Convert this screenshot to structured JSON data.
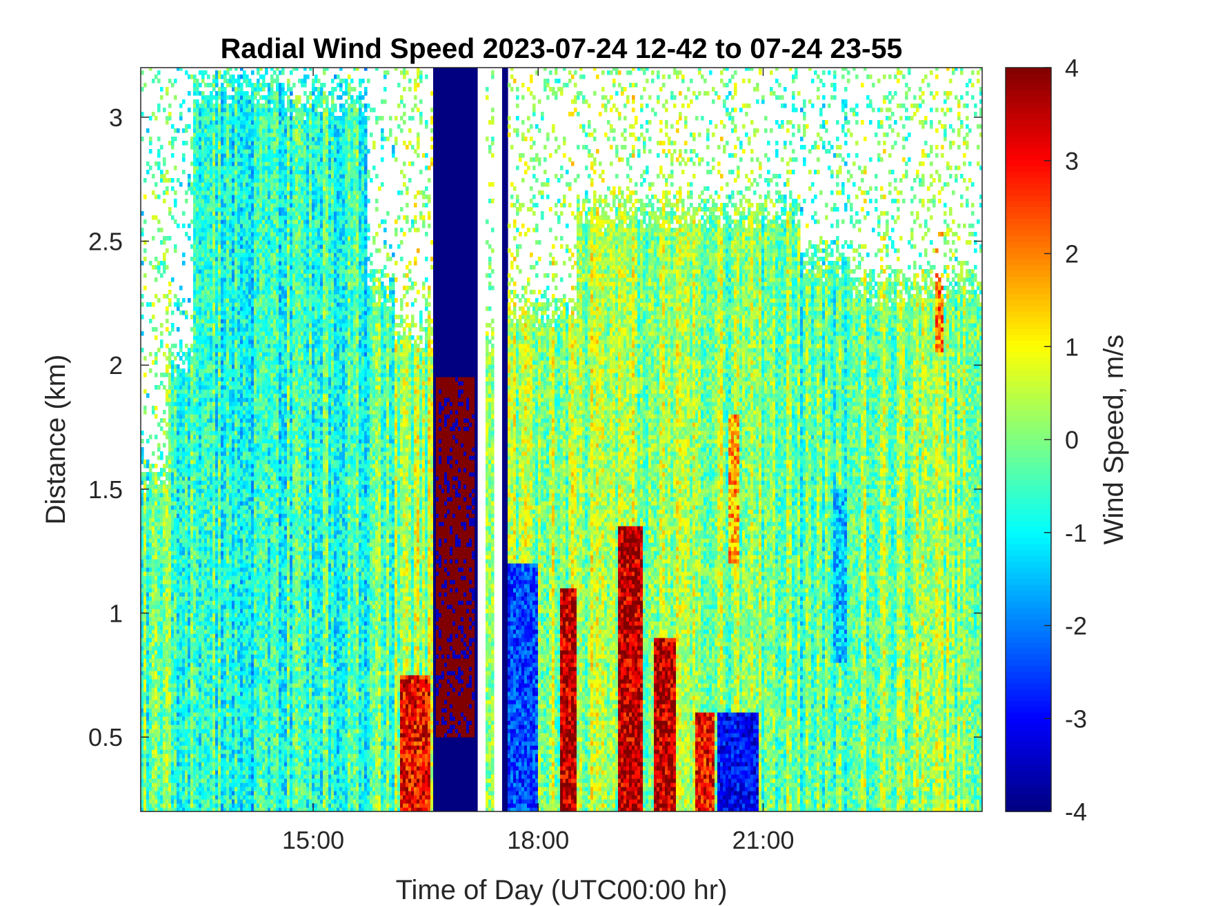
{
  "chart_data": {
    "type": "heatmap",
    "title": "Radial Wind Speed 2023-07-24 12-42 to 07-24 23-55",
    "xlabel": "Time of Day (UTC00:00 hr)",
    "ylabel": "Distance (km)",
    "colorbar_label": "Wind Speed, m/s",
    "colormap": "jet",
    "xlim": [
      12.7,
      23.92
    ],
    "ylim": [
      0.2,
      3.2
    ],
    "clim": [
      -4,
      4
    ],
    "x_ticks": [
      {
        "value": 15,
        "label": "15:00"
      },
      {
        "value": 18,
        "label": "18:00"
      },
      {
        "value": 21,
        "label": "21:00"
      }
    ],
    "y_ticks": [
      {
        "value": 0.5,
        "label": "0.5"
      },
      {
        "value": 1,
        "label": "1"
      },
      {
        "value": 1.5,
        "label": "1.5"
      },
      {
        "value": 2,
        "label": "2"
      },
      {
        "value": 2.5,
        "label": "2.5"
      },
      {
        "value": 3,
        "label": "3"
      }
    ],
    "colorbar_ticks": [
      {
        "value": 4,
        "label": "4"
      },
      {
        "value": 3,
        "label": "3"
      },
      {
        "value": 2,
        "label": "2"
      },
      {
        "value": 1,
        "label": "1"
      },
      {
        "value": 0,
        "label": "0"
      },
      {
        "value": -1,
        "label": "-1"
      },
      {
        "value": -2,
        "label": "-2"
      },
      {
        "value": -3,
        "label": "-3"
      },
      {
        "value": -4,
        "label": "-4"
      }
    ],
    "segments": [
      {
        "x_start": 12.7,
        "x_end": 13.05,
        "top_km": 1.65,
        "mean": -0.3
      },
      {
        "x_start": 13.05,
        "x_end": 13.4,
        "top_km": 2.1,
        "mean": -0.4
      },
      {
        "x_start": 13.4,
        "x_end": 14.6,
        "top_km": 3.2,
        "mean": -0.7
      },
      {
        "x_start": 14.6,
        "x_end": 15.7,
        "top_km": 3.15,
        "mean": -0.6
      },
      {
        "x_start": 15.7,
        "x_end": 16.1,
        "top_km": 2.4,
        "mean": -0.3
      },
      {
        "x_start": 16.1,
        "x_end": 16.6,
        "top_km": 2.2,
        "mean": 0.2
      },
      {
        "x_start": 16.6,
        "x_end": 17.2,
        "top_km": 3.2,
        "mean": -4.0
      },
      {
        "x_start": 17.3,
        "x_end": 17.42,
        "top_km": 2.2,
        "mean": 0.0
      },
      {
        "x_start": 17.52,
        "x_end": 17.6,
        "top_km": 3.2,
        "mean": -4.0
      },
      {
        "x_start": 17.6,
        "x_end": 18.5,
        "top_km": 2.3,
        "mean": 0.2
      },
      {
        "x_start": 18.5,
        "x_end": 20.5,
        "top_km": 2.7,
        "mean": 0.3
      },
      {
        "x_start": 20.5,
        "x_end": 21.5,
        "top_km": 2.7,
        "mean": 0.0
      },
      {
        "x_start": 21.5,
        "x_end": 22.2,
        "top_km": 2.5,
        "mean": -0.3
      },
      {
        "x_start": 22.2,
        "x_end": 23.92,
        "top_km": 2.4,
        "mean": 0.1
      }
    ],
    "features": [
      {
        "kind": "high",
        "x_start": 16.63,
        "x_end": 17.15,
        "y_start": 0.5,
        "y_end": 1.95,
        "value": 4.0
      },
      {
        "kind": "high",
        "x_start": 16.15,
        "x_end": 16.55,
        "y_start": 0.2,
        "y_end": 0.75,
        "value": 3.0
      },
      {
        "kind": "high",
        "x_start": 18.3,
        "x_end": 18.5,
        "y_start": 0.2,
        "y_end": 1.1,
        "value": 3.5
      },
      {
        "kind": "high",
        "x_start": 19.05,
        "x_end": 19.4,
        "y_start": 0.2,
        "y_end": 1.35,
        "value": 3.5
      },
      {
        "kind": "high",
        "x_start": 19.55,
        "x_end": 19.85,
        "y_start": 0.2,
        "y_end": 0.9,
        "value": 3.5
      },
      {
        "kind": "high",
        "x_start": 20.1,
        "x_end": 20.35,
        "y_start": 0.2,
        "y_end": 0.6,
        "value": 3.0
      },
      {
        "kind": "high",
        "x_start": 20.55,
        "x_end": 20.7,
        "y_start": 1.2,
        "y_end": 1.8,
        "value": 1.6
      },
      {
        "kind": "low",
        "x_start": 20.4,
        "x_end": 20.95,
        "y_start": 0.2,
        "y_end": 0.6,
        "value": -3.0
      },
      {
        "kind": "low",
        "x_start": 17.6,
        "x_end": 18.0,
        "y_start": 0.2,
        "y_end": 1.2,
        "value": -2.5
      },
      {
        "kind": "low",
        "x_start": 21.95,
        "x_end": 22.1,
        "y_start": 0.8,
        "y_end": 1.5,
        "value": -1.5
      },
      {
        "kind": "high",
        "x_start": 23.3,
        "x_end": 23.4,
        "y_start": 2.05,
        "y_end": 2.55,
        "value": 2.0
      }
    ]
  }
}
